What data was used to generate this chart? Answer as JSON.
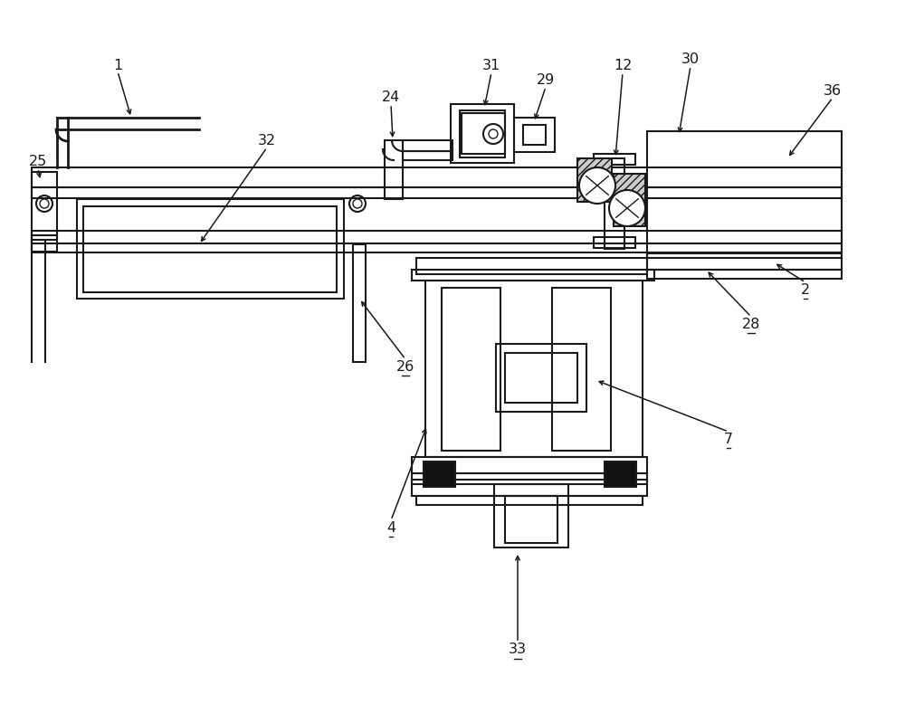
{
  "bg_color": "#ffffff",
  "lc": "#1a1a1a",
  "lw": 1.5,
  "lw_thin": 1.0,
  "lw_thick": 2.0,
  "fs": 11.5
}
